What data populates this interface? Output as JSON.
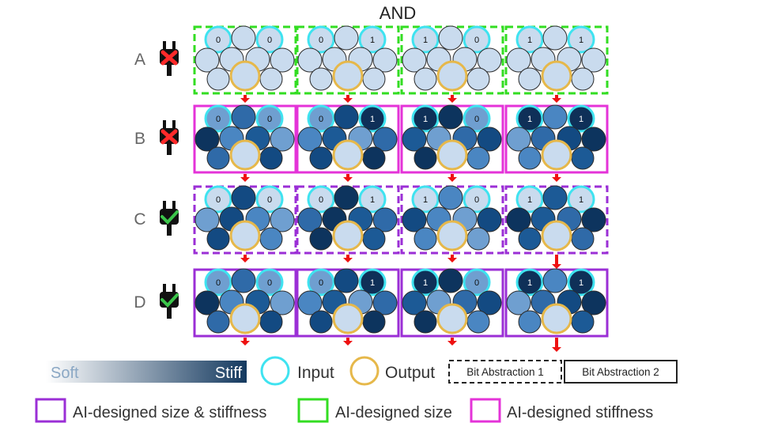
{
  "title": "AND",
  "rows": [
    {
      "label": "A",
      "powered": false,
      "frame": "green",
      "style": "dashed"
    },
    {
      "label": "B",
      "powered": false,
      "frame": "magenta",
      "style": "solid"
    },
    {
      "label": "C",
      "powered": true,
      "frame": "purple",
      "style": "dashed"
    },
    {
      "label": "D",
      "powered": true,
      "frame": "purple",
      "style": "solid"
    }
  ],
  "inputs": [
    [
      "0",
      "0"
    ],
    [
      "0",
      "1"
    ],
    [
      "1",
      "0"
    ],
    [
      "1",
      "1"
    ]
  ],
  "legend": {
    "soft": "Soft",
    "stiff": "Stiff",
    "input": "Input",
    "output": "Output",
    "bit1": "Bit Abstraction 1",
    "bit2": "Bit Abstraction 2",
    "size_stiffness": "AI-designed size & stiffness",
    "size": "AI-designed size",
    "stiffness": "AI-designed stiffness"
  },
  "colors": {
    "green": "#33dd22",
    "magenta": "#e433d8",
    "purple": "#9b2fd6",
    "input_ring": "#3fe3f0",
    "output_ring": "#e6b84a",
    "arrow": "#ee1111",
    "soft": "#c7d9ee",
    "stiff": "#143a62"
  }
}
